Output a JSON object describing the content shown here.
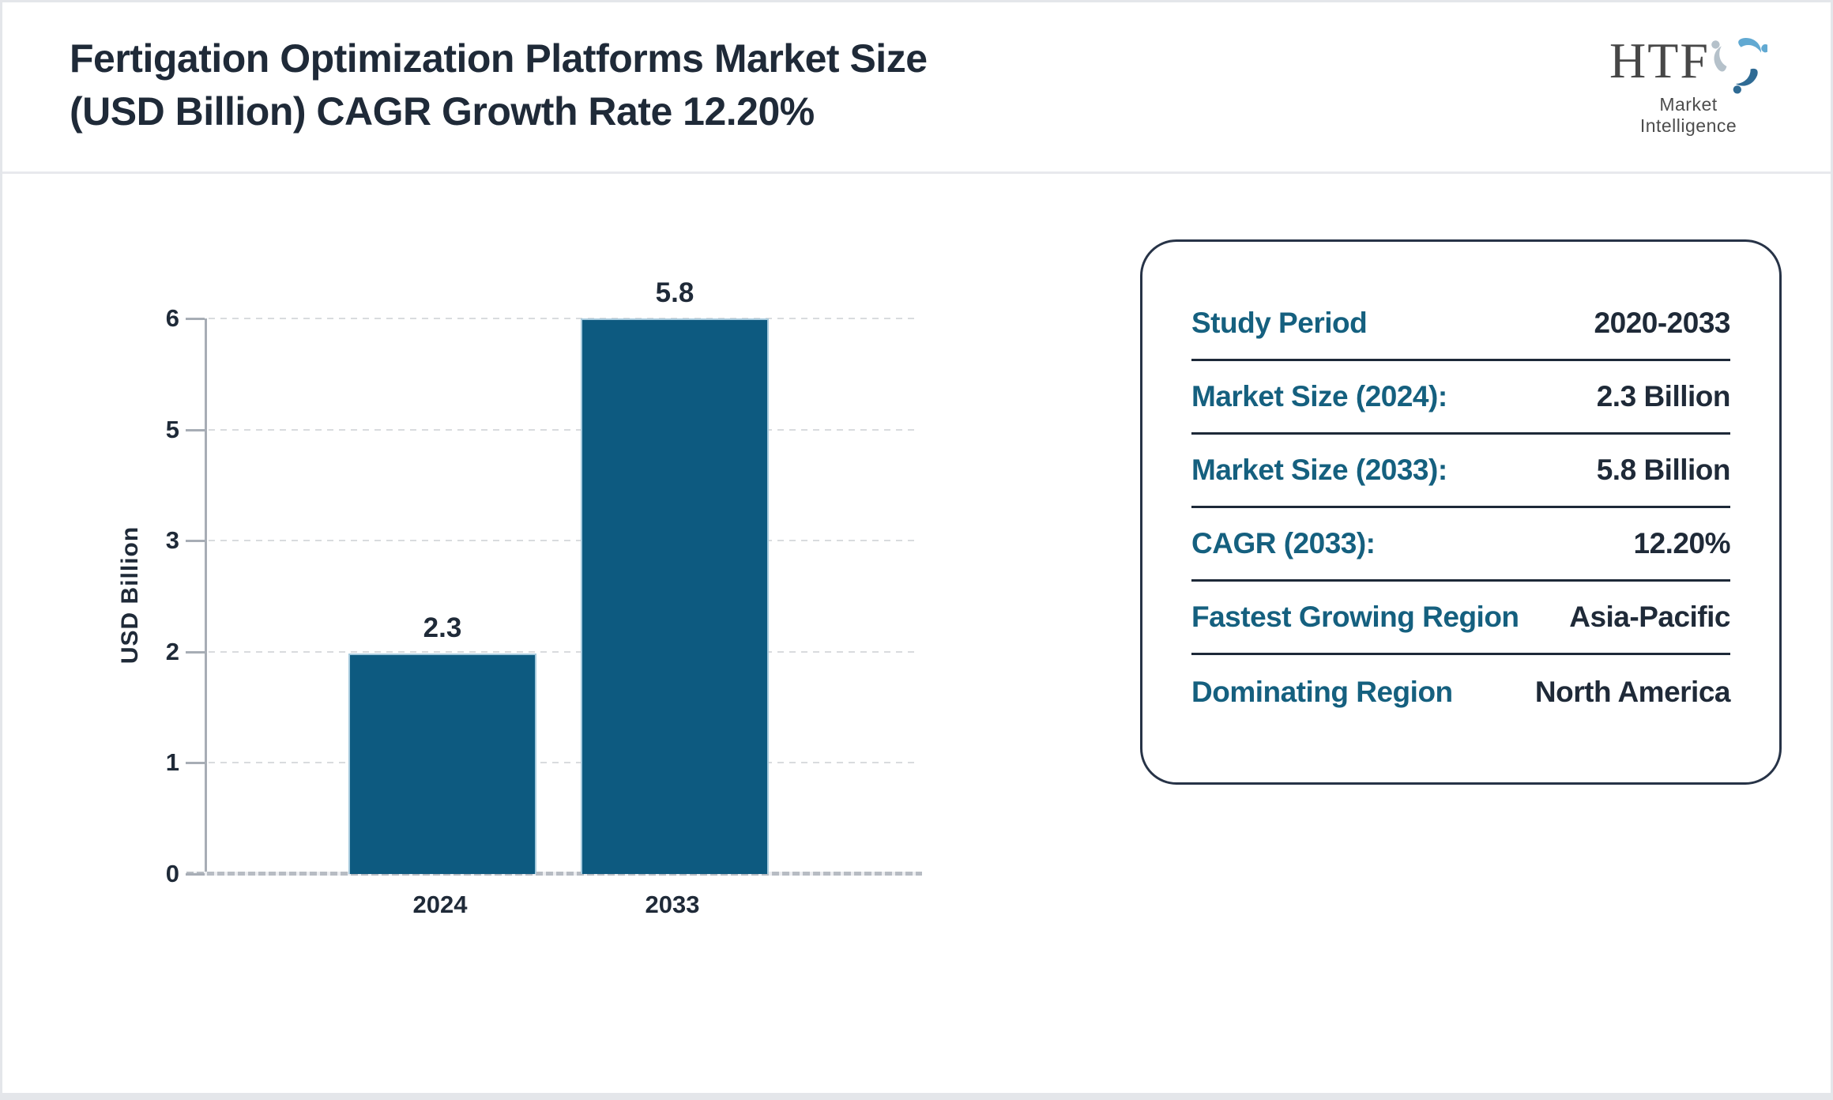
{
  "header": {
    "title_line1": "Fertigation Optimization Platforms Market Size",
    "title_line2": "(USD Billion) CAGR Growth Rate 12.20%",
    "logo": {
      "text": "HTF",
      "subtext": "Market Intelligence",
      "icon": "htf-swirl-icon",
      "icon_colors": [
        "#61a9d2",
        "#2f6b94",
        "#b5c1ca"
      ]
    }
  },
  "chart_data": {
    "type": "bar",
    "title": "Fertigation Optimization Platforms Market Size (USD Billion) CAGR Growth Rate 12.20%",
    "categories": [
      "2024",
      "2033"
    ],
    "values": [
      2.3,
      5.8
    ],
    "value_labels": [
      "2.3",
      "5.8"
    ],
    "xlabel": "",
    "ylabel": "USD Billion",
    "ylim": [
      0,
      6
    ],
    "y_tick_labels_top_to_bottom": [
      "6",
      "5",
      "3",
      "2",
      "1",
      "0"
    ],
    "grid": "horizontal-dashed",
    "legend": "none",
    "bar_color": "#0d5a80"
  },
  "info_card": {
    "rows": [
      {
        "label": "Study Period",
        "value": "2020-2033"
      },
      {
        "label": "Market Size (2024):",
        "value": "2.3 Billion"
      },
      {
        "label": "Market Size (2033):",
        "value": "5.8 Billion"
      },
      {
        "label": "CAGR (2033):",
        "value": "12.20%"
      },
      {
        "label": "Fastest Growing Region",
        "value": "Asia-Pacific"
      },
      {
        "label": "Dominating Region",
        "value": "North America"
      }
    ]
  },
  "colors": {
    "bar": "#0d5a80",
    "label_teal": "#15607f",
    "text_navy": "#1f2a38",
    "grid": "#d9dbde",
    "axis": "#a7adb5",
    "page_border": "#e4e6ea"
  }
}
